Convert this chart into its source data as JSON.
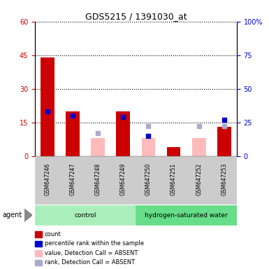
{
  "title": "GDS5215 / 1391030_at",
  "samples": [
    "GSM647246",
    "GSM647247",
    "GSM647248",
    "GSM647249",
    "GSM647250",
    "GSM647251",
    "GSM647252",
    "GSM647253"
  ],
  "count_values": [
    44,
    20,
    null,
    20,
    null,
    4,
    null,
    13
  ],
  "rank_values": [
    33,
    30,
    null,
    29,
    15,
    null,
    null,
    27
  ],
  "absent_value": [
    null,
    null,
    8,
    null,
    8,
    null,
    8,
    null
  ],
  "absent_rank": [
    null,
    null,
    17,
    null,
    22,
    null,
    22,
    22
  ],
  "ylim_left": [
    0,
    60
  ],
  "ylim_right": [
    0,
    100
  ],
  "yticks_left": [
    0,
    15,
    30,
    45,
    60
  ],
  "yticks_right": [
    0,
    25,
    50,
    75,
    100
  ],
  "ytick_labels_right": [
    "0",
    "25",
    "50",
    "75",
    "100%"
  ],
  "color_count": "#cc0000",
  "color_rank": "#0000cc",
  "color_absent_value": "#ffbbbb",
  "color_absent_rank": "#aaaacc",
  "group_defs": [
    {
      "start": 0,
      "end": 3,
      "label": "control",
      "color": "#aaeebb"
    },
    {
      "start": 4,
      "end": 7,
      "label": "hydrogen-saturated water",
      "color": "#66dd88"
    }
  ],
  "legend_labels": [
    "count",
    "percentile rank within the sample",
    "value, Detection Call = ABSENT",
    "rank, Detection Call = ABSENT"
  ],
  "legend_colors": [
    "#cc0000",
    "#0000cc",
    "#ffbbbb",
    "#aaaacc"
  ]
}
